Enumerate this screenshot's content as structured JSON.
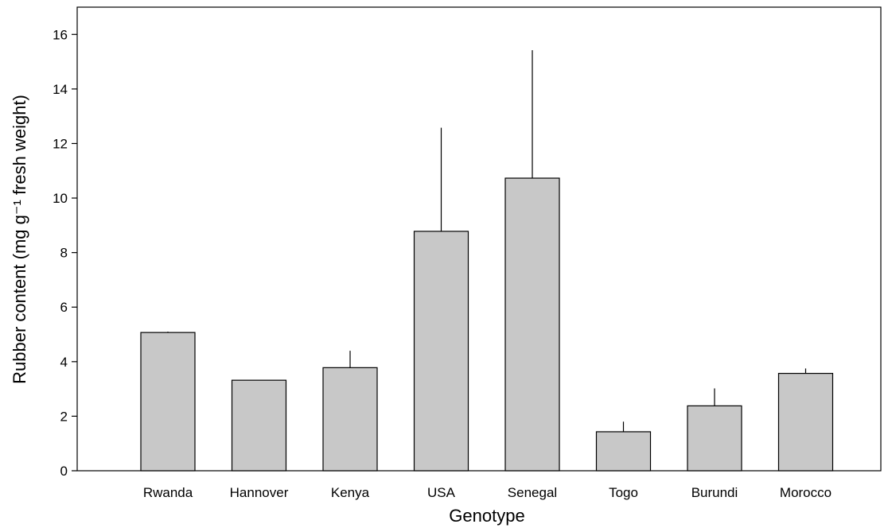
{
  "chart_data": {
    "type": "bar",
    "categories": [
      "Rwanda",
      "Hannover",
      "Kenya",
      "USA",
      "Senegal",
      "Togo",
      "Burundi",
      "Morocco"
    ],
    "values": [
      5.07,
      3.32,
      3.78,
      8.78,
      10.73,
      1.43,
      2.38,
      3.57
    ],
    "error_upper": [
      5.1,
      3.32,
      4.4,
      12.58,
      15.42,
      1.8,
      3.02,
      3.75
    ],
    "xlabel": "Genotype",
    "ylabel": "Rubber content (mg g⁻¹ fresh weight)",
    "ylim": [
      0,
      17
    ],
    "yticks": [
      0,
      2,
      4,
      6,
      8,
      10,
      12,
      14,
      16
    ],
    "grid": false,
    "legend": "none"
  },
  "colors": {
    "bar_fill": "#c8c8c8",
    "bar_stroke": "#000000",
    "axis": "#000000"
  }
}
